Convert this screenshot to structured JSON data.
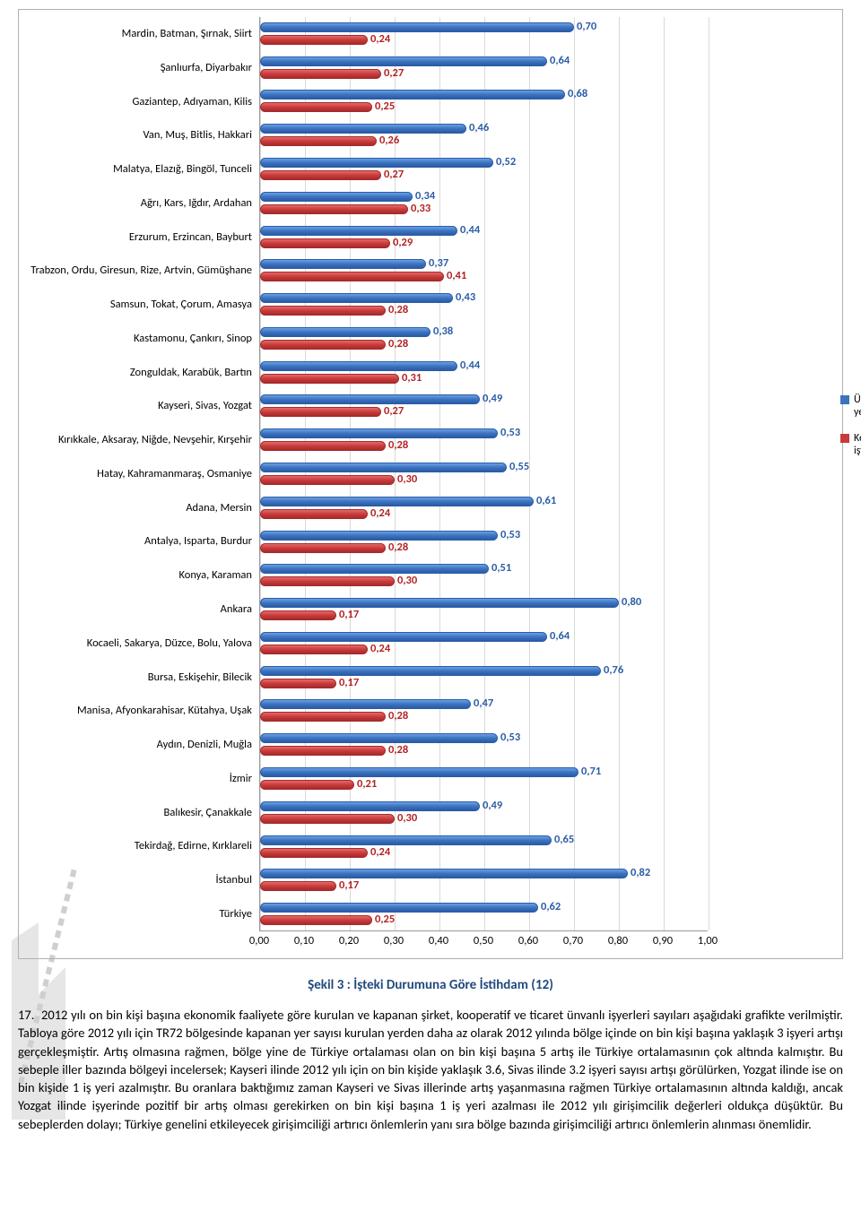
{
  "chart": {
    "type": "bar",
    "orientation": "horizontal",
    "x_max": 1.0,
    "x_ticks": [
      "0,00",
      "0,10",
      "0,20",
      "0,30",
      "0,40",
      "0,50",
      "0,60",
      "0,70",
      "0,80",
      "0,90",
      "1,00"
    ],
    "grid_color": "#d9d9d9",
    "label_fontsize": 12.5,
    "value_fontsize": 12.5,
    "value_color_blue": "#2a5ca6",
    "value_color_red": "#b22222",
    "bar_blue_fill": "#3d72bf",
    "bar_red_fill": "#c93b3b",
    "series": [
      {
        "key": "blue",
        "label": "Ücretli, maaşlı veya yevmiyeli / Toplam",
        "color": "#3d72bf"
      },
      {
        "key": "red",
        "label": "Kendi Hesabına veya işveren / Toplam",
        "color": "#c93b3b"
      }
    ],
    "rows": [
      {
        "label": "Mardin, Batman, Şırnak, Siirt",
        "blue": 0.7,
        "red": 0.24,
        "blue_t": "0,70",
        "red_t": "0,24"
      },
      {
        "label": "Şanlıurfa, Diyarbakır",
        "blue": 0.64,
        "red": 0.27,
        "blue_t": "0,64",
        "red_t": "0,27"
      },
      {
        "label": "Gaziantep, Adıyaman, Kilis",
        "blue": 0.68,
        "red": 0.25,
        "blue_t": "0,68",
        "red_t": "0,25"
      },
      {
        "label": "Van, Muş, Bitlis, Hakkari",
        "blue": 0.46,
        "red": 0.26,
        "blue_t": "0,46",
        "red_t": "0,26"
      },
      {
        "label": "Malatya, Elazığ, Bingöl, Tunceli",
        "blue": 0.52,
        "red": 0.27,
        "blue_t": "0,52",
        "red_t": "0,27"
      },
      {
        "label": "Ağrı, Kars, Iğdır, Ardahan",
        "blue": 0.34,
        "red": 0.33,
        "blue_t": "0,34",
        "red_t": "0,33"
      },
      {
        "label": "Erzurum, Erzincan, Bayburt",
        "blue": 0.44,
        "red": 0.29,
        "blue_t": "0,44",
        "red_t": "0,29"
      },
      {
        "label": "Trabzon, Ordu, Giresun, Rize, Artvin, Gümüşhane",
        "blue": 0.37,
        "red": 0.41,
        "blue_t": "0,37",
        "red_t": "0,41"
      },
      {
        "label": "Samsun, Tokat, Çorum, Amasya",
        "blue": 0.43,
        "red": 0.28,
        "blue_t": "0,43",
        "red_t": "0,28"
      },
      {
        "label": "Kastamonu, Çankırı, Sinop",
        "blue": 0.38,
        "red": 0.28,
        "blue_t": "0,38",
        "red_t": "0,28"
      },
      {
        "label": "Zonguldak, Karabük, Bartın",
        "blue": 0.44,
        "red": 0.31,
        "blue_t": "0,44",
        "red_t": "0,31"
      },
      {
        "label": "Kayseri, Sivas, Yozgat",
        "blue": 0.49,
        "red": 0.27,
        "blue_t": "0,49",
        "red_t": "0,27"
      },
      {
        "label": "Kırıkkale, Aksaray, Niğde, Nevşehir, Kırşehir",
        "blue": 0.53,
        "red": 0.28,
        "blue_t": "0,53",
        "red_t": "0,28"
      },
      {
        "label": "Hatay, Kahramanmaraş, Osmaniye",
        "blue": 0.55,
        "red": 0.3,
        "blue_t": "0,55",
        "red_t": "0,30"
      },
      {
        "label": "Adana, Mersin",
        "blue": 0.61,
        "red": 0.24,
        "blue_t": "0,61",
        "red_t": "0,24"
      },
      {
        "label": "Antalya, Isparta, Burdur",
        "blue": 0.53,
        "red": 0.28,
        "blue_t": "0,53",
        "red_t": "0,28"
      },
      {
        "label": "Konya, Karaman",
        "blue": 0.51,
        "red": 0.3,
        "blue_t": "0,51",
        "red_t": "0,30"
      },
      {
        "label": "Ankara",
        "blue": 0.8,
        "red": 0.17,
        "blue_t": "0,80",
        "red_t": "0,17"
      },
      {
        "label": "Kocaeli, Sakarya, Düzce, Bolu, Yalova",
        "blue": 0.64,
        "red": 0.24,
        "blue_t": "0,64",
        "red_t": "0,24"
      },
      {
        "label": "Bursa, Eskişehir, Bilecik",
        "blue": 0.76,
        "red": 0.17,
        "blue_t": "0,76",
        "red_t": "0,17"
      },
      {
        "label": "Manisa, Afyonkarahisar, Kütahya, Uşak",
        "blue": 0.47,
        "red": 0.28,
        "blue_t": "0,47",
        "red_t": "0,28"
      },
      {
        "label": "Aydın, Denizli, Muğla",
        "blue": 0.53,
        "red": 0.28,
        "blue_t": "0,53",
        "red_t": "0,28"
      },
      {
        "label": "İzmir",
        "blue": 0.71,
        "red": 0.21,
        "blue_t": "0,71",
        "red_t": "0,21"
      },
      {
        "label": "Balıkesir, Çanakkale",
        "blue": 0.49,
        "red": 0.3,
        "blue_t": "0,49",
        "red_t": "0,30"
      },
      {
        "label": "Tekirdağ, Edirne, Kırklareli",
        "blue": 0.65,
        "red": 0.24,
        "blue_t": "0,65",
        "red_t": "0,24"
      },
      {
        "label": "İstanbul",
        "blue": 0.82,
        "red": 0.17,
        "blue_t": "0,82",
        "red_t": "0,17"
      },
      {
        "label": "Türkiye",
        "blue": 0.62,
        "red": 0.25,
        "blue_t": "0,62",
        "red_t": "0,25"
      }
    ]
  },
  "caption": "Şekil 3 : İşteki Durumuna Göre İstihdam  (12)",
  "paragraph_num": "17.",
  "paragraph": "2012 yılı on bin kişi başına ekonomik faaliyete göre kurulan ve kapanan şirket, kooperatif ve ticaret ünvanlı işyerleri sayıları aşağıdaki grafikte verilmiştir. Tabloya göre 2012 yılı için TR72 bölgesinde kapanan yer sayısı kurulan yerden daha az olarak 2012 yılında bölge içinde on bin kişi başına yaklaşık 3 işyeri artışı gerçekleşmiştir. Artış olmasına rağmen, bölge yine de Türkiye ortalaması olan on bin kişi başına 5 artış ile Türkiye ortalamasının çok altında kalmıştır. Bu sebeple iller bazında bölgeyi incelersek; Kayseri ilinde 2012 yılı için on bin kişide yaklaşık 3.6, Sivas ilinde 3.2 işyeri sayısı artışı görülürken, Yozgat ilinde ise on bin kişide  1 iş yeri azalmıştır. Bu oranlara baktığımız zaman Kayseri ve Sivas illerinde artış yaşanmasına rağmen Türkiye ortalamasının altında kaldığı, ancak Yozgat ilinde işyerinde pozitif bir artış olması gerekirken on bin kişi başına 1 iş yeri azalması ile 2012 yılı girişimcilik değerleri oldukça düşüktür. Bu sebeplerden dolayı; Türkiye genelini etkileyecek girişimciliği artırıcı önlemlerin yanı sıra bölge bazında girişimciliği artırıcı önlemlerin alınması önemlidir."
}
